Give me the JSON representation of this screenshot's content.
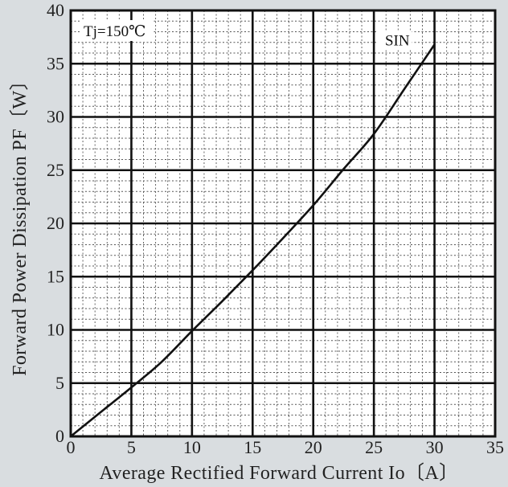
{
  "chart_data": {
    "type": "line",
    "xlabel": "Average Rectified Forward Current  Io〔A〕",
    "ylabel": "Forward Power Dissipation  PF〔W〕",
    "xlim": [
      0,
      35
    ],
    "ylim": [
      0,
      40
    ],
    "x_ticks": [
      "0",
      "5",
      "10",
      "15",
      "20",
      "25",
      "30",
      "35"
    ],
    "y_ticks": [
      "0",
      "5",
      "10",
      "15",
      "20",
      "25",
      "30",
      "35",
      "40"
    ],
    "grid": true,
    "annotations": [
      "Tj=150℃"
    ],
    "series": [
      {
        "name": "SIN",
        "x": [
          0,
          2.5,
          5,
          7.5,
          10,
          12.5,
          15,
          17.5,
          20,
          22.5,
          25,
          27.5,
          30
        ],
        "y": [
          0,
          2.3,
          4.6,
          7.0,
          9.9,
          12.7,
          15.6,
          18.6,
          21.7,
          25.1,
          28.4,
          32.6,
          36.8
        ]
      }
    ]
  }
}
